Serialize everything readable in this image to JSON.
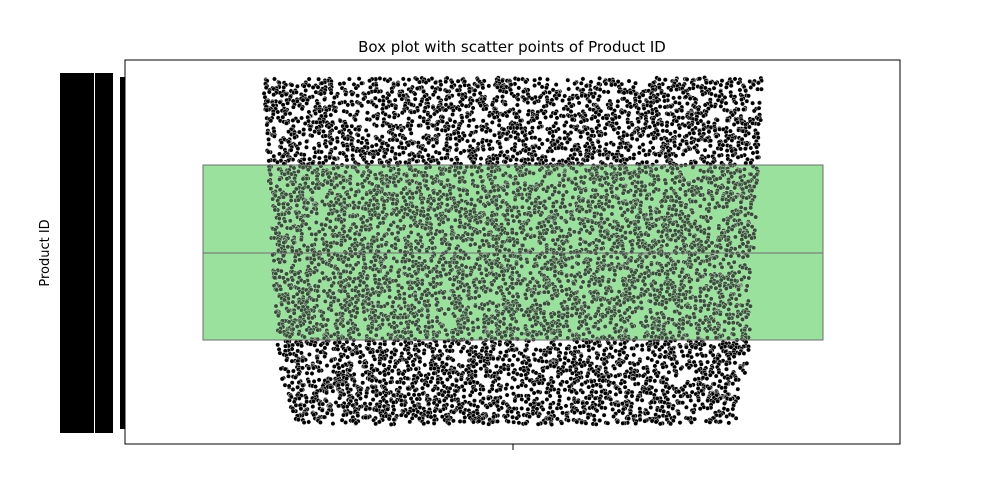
{
  "chart_data": {
    "type": "box",
    "title": "Box plot with scatter points of Product ID",
    "xlabel": "",
    "ylabel": "Product ID",
    "orientation": "vertical",
    "box": {
      "q1_frac": 0.25,
      "median_frac": 0.5,
      "q3_frac": 0.75,
      "whisker_low_frac": 0.0,
      "whisker_high_frac": 1.0
    },
    "scatter": {
      "description": "one black dot per distinct Product ID, uniformly distributed over the categorical axis",
      "approx_points": 9000
    },
    "ytick_labels_legible": false,
    "grid": false,
    "legend": "none"
  },
  "colors": {
    "box_fill": "#9ae19d",
    "box_edge": "#6e6e6e",
    "points": "#000000",
    "axes": "#000000",
    "background": "#ffffff"
  }
}
